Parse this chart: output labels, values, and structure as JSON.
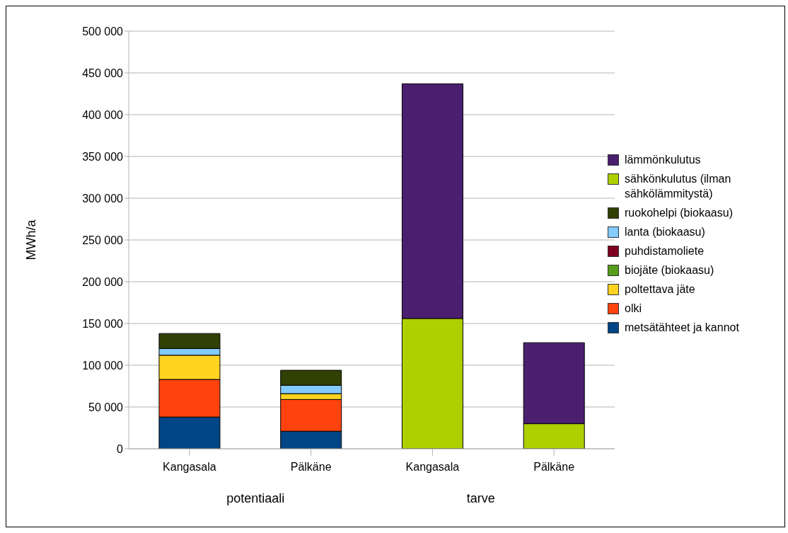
{
  "chart_data": {
    "type": "bar",
    "stacked": true,
    "ylabel": "MWh/a",
    "categories": [
      "Kangasala",
      "Pälkäne",
      "Kangasala",
      "Pälkäne"
    ],
    "series": [
      {
        "name": "metsätähteet ja kannot",
        "color": "#004586",
        "values": [
          38000,
          21000,
          null,
          null
        ]
      },
      {
        "name": "olki",
        "color": "#ff420e",
        "values": [
          45000,
          38000,
          null,
          null
        ]
      },
      {
        "name": "poltettava jäte",
        "color": "#ffd320",
        "values": [
          29000,
          7000,
          null,
          null
        ]
      },
      {
        "name": "biojäte (biokaasu)",
        "color": "#579d1c",
        "values": [
          null,
          null,
          null,
          null
        ]
      },
      {
        "name": "puhdistamoliete",
        "color": "#7e0021",
        "values": [
          null,
          null,
          null,
          null
        ]
      },
      {
        "name": "lanta (biokaasu)",
        "color": "#83caff",
        "values": [
          8000,
          10000,
          null,
          null
        ]
      },
      {
        "name": "ruokohelpi (biokaasu)",
        "color": "#314004",
        "values": [
          18000,
          18000,
          null,
          null
        ]
      },
      {
        "name": "sähkönkulutus (ilman sähkölämmitystä)",
        "color": "#aecf00",
        "values": [
          null,
          null,
          156000,
          30000
        ]
      },
      {
        "name": "lämmönkulutus",
        "color": "#4b1f6f",
        "values": [
          null,
          null,
          281000,
          97000
        ]
      }
    ],
    "ylim": [
      0,
      500000
    ],
    "yticks": [
      0,
      {
        "value": 50000,
        "label": "50 000"
      },
      {
        "value": 100000,
        "label": "100 000"
      },
      {
        "value": 150000,
        "label": "150 000"
      },
      {
        "value": 200000,
        "label": "200 000"
      },
      {
        "value": 250000,
        "label": "250 000"
      },
      {
        "value": 300000,
        "label": "300 000"
      },
      {
        "value": 350000,
        "label": "350 000"
      },
      {
        "value": 400000,
        "label": "400 000"
      },
      {
        "value": 450000,
        "label": "450 000"
      },
      {
        "value": 500000,
        "label": "500 000"
      }
    ],
    "grid": "y",
    "legend": "right",
    "annotations": [
      "potentiaali",
      "tarve"
    ]
  }
}
